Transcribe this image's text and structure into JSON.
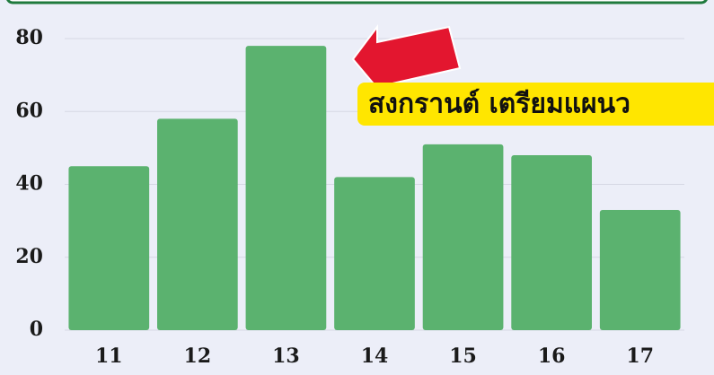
{
  "chart_data": {
    "type": "bar",
    "categories": [
      "11",
      "12",
      "13",
      "14",
      "15",
      "16",
      "17"
    ],
    "values": [
      45,
      58,
      78,
      42,
      51,
      48,
      33
    ],
    "color": "#5bb26f",
    "ylim": [
      0,
      80
    ],
    "yticks": [
      0,
      20,
      40,
      60,
      80
    ],
    "grid": true,
    "annotation": "สงกรานต์ เตรียมแผนว"
  }
}
